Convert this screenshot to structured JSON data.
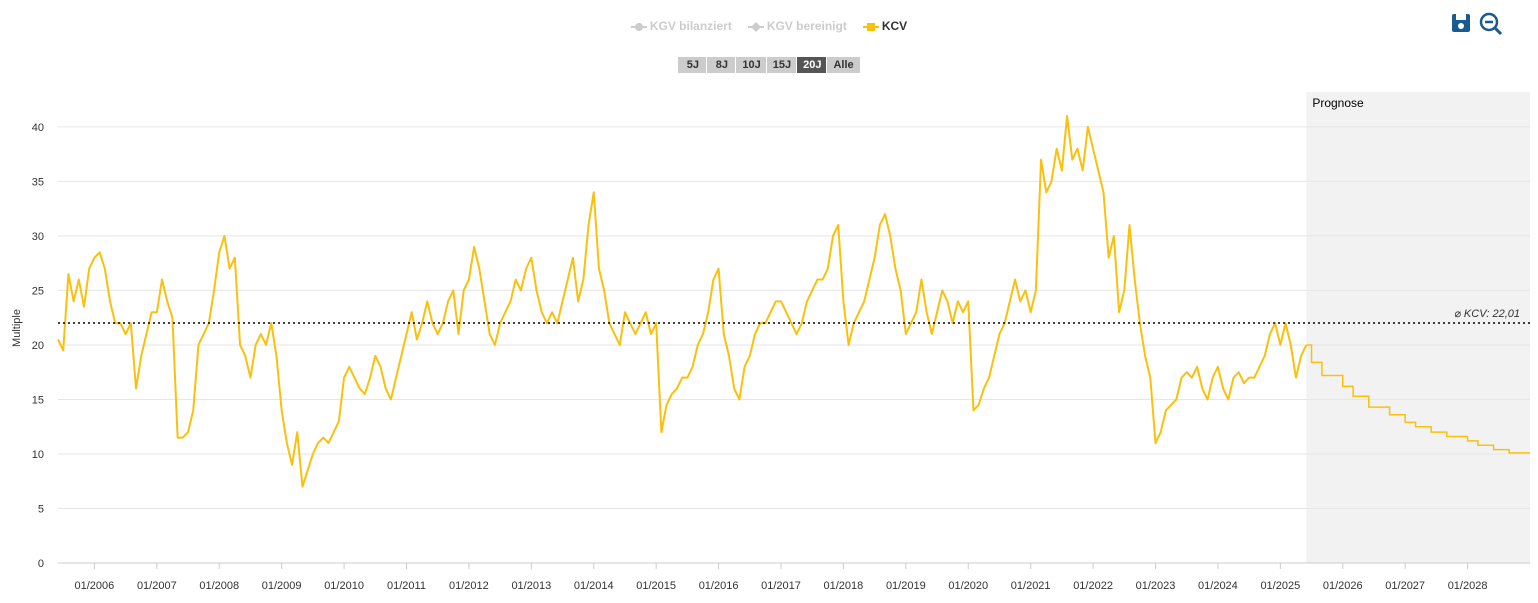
{
  "chart_data": {
    "type": "line",
    "y_label": "Multiple",
    "series": [
      {
        "name": "KGV bilanziert",
        "color": "#cccccc",
        "marker": "circle",
        "visible": false
      },
      {
        "name": "KGV bereinigt",
        "color": "#cccccc",
        "marker": "diamond",
        "visible": false
      },
      {
        "name": "KCV",
        "color": "#f9c10e",
        "marker": "square",
        "visible": true,
        "x": [
          "06/2005",
          "07/2005",
          "08/2005",
          "09/2005",
          "10/2005",
          "11/2005",
          "12/2005",
          "01/2006",
          "02/2006",
          "03/2006",
          "04/2006",
          "05/2006",
          "06/2006",
          "07/2006",
          "08/2006",
          "09/2006",
          "10/2006",
          "11/2006",
          "12/2006",
          "01/2007",
          "02/2007",
          "03/2007",
          "04/2007",
          "05/2007",
          "06/2007",
          "07/2007",
          "08/2007",
          "09/2007",
          "10/2007",
          "11/2007",
          "12/2007",
          "01/2008",
          "02/2008",
          "03/2008",
          "04/2008",
          "05/2008",
          "06/2008",
          "07/2008",
          "08/2008",
          "09/2008",
          "10/2008",
          "11/2008",
          "12/2008",
          "01/2009",
          "02/2009",
          "03/2009",
          "04/2009",
          "05/2009",
          "06/2009",
          "07/2009",
          "08/2009",
          "09/2009",
          "10/2009",
          "11/2009",
          "12/2009",
          "01/2010",
          "02/2010",
          "03/2010",
          "04/2010",
          "05/2010",
          "06/2010",
          "07/2010",
          "08/2010",
          "09/2010",
          "10/2010",
          "11/2010",
          "12/2010",
          "01/2011",
          "02/2011",
          "03/2011",
          "04/2011",
          "05/2011",
          "06/2011",
          "07/2011",
          "08/2011",
          "09/2011",
          "10/2011",
          "11/2011",
          "12/2011",
          "01/2012",
          "02/2012",
          "03/2012",
          "04/2012",
          "05/2012",
          "06/2012",
          "07/2012",
          "08/2012",
          "09/2012",
          "10/2012",
          "11/2012",
          "12/2012",
          "01/2013",
          "02/2013",
          "03/2013",
          "04/2013",
          "05/2013",
          "06/2013",
          "07/2013",
          "08/2013",
          "09/2013",
          "10/2013",
          "11/2013",
          "12/2013",
          "01/2014",
          "02/2014",
          "03/2014",
          "04/2014",
          "05/2014",
          "06/2014",
          "07/2014",
          "08/2014",
          "09/2014",
          "10/2014",
          "11/2014",
          "12/2014",
          "01/2015",
          "02/2015",
          "03/2015",
          "04/2015",
          "05/2015",
          "06/2015",
          "07/2015",
          "08/2015",
          "09/2015",
          "10/2015",
          "11/2015",
          "12/2015",
          "01/2016",
          "02/2016",
          "03/2016",
          "04/2016",
          "05/2016",
          "06/2016",
          "07/2016",
          "08/2016",
          "09/2016",
          "10/2016",
          "11/2016",
          "12/2016",
          "01/2017",
          "02/2017",
          "03/2017",
          "04/2017",
          "05/2017",
          "06/2017",
          "07/2017",
          "08/2017",
          "09/2017",
          "10/2017",
          "11/2017",
          "12/2017",
          "01/2018",
          "02/2018",
          "03/2018",
          "04/2018",
          "05/2018",
          "06/2018",
          "07/2018",
          "08/2018",
          "09/2018",
          "10/2018",
          "11/2018",
          "12/2018",
          "01/2019",
          "02/2019",
          "03/2019",
          "04/2019",
          "05/2019",
          "06/2019",
          "07/2019",
          "08/2019",
          "09/2019",
          "10/2019",
          "11/2019",
          "12/2019",
          "01/2020",
          "02/2020",
          "03/2020",
          "04/2020",
          "05/2020",
          "06/2020",
          "07/2020",
          "08/2020",
          "09/2020",
          "10/2020",
          "11/2020",
          "12/2020",
          "01/2021",
          "02/2021",
          "03/2021",
          "04/2021",
          "05/2021",
          "06/2021",
          "07/2021",
          "08/2021",
          "09/2021",
          "10/2021",
          "11/2021",
          "12/2021",
          "01/2022",
          "02/2022",
          "03/2022",
          "04/2022",
          "05/2022",
          "06/2022",
          "07/2022",
          "08/2022",
          "09/2022",
          "10/2022",
          "11/2022",
          "12/2022",
          "01/2023",
          "02/2023",
          "03/2023",
          "04/2023",
          "05/2023",
          "06/2023",
          "07/2023",
          "08/2023",
          "09/2023",
          "10/2023",
          "11/2023",
          "12/2023",
          "01/2024",
          "02/2024",
          "03/2024",
          "04/2024",
          "05/2024",
          "06/2024",
          "07/2024",
          "08/2024",
          "09/2024",
          "10/2024",
          "11/2024",
          "12/2024",
          "01/2025",
          "02/2025",
          "03/2025",
          "04/2025",
          "05/2025",
          "06/2025"
        ],
        "values": [
          20.5,
          19.5,
          26.5,
          24,
          26,
          23.5,
          27,
          28,
          28.5,
          27,
          24,
          22,
          22,
          21,
          22,
          16,
          19,
          21,
          23,
          23,
          26,
          24,
          22.5,
          11.5,
          11.5,
          12,
          14,
          20,
          21,
          22,
          25,
          28.5,
          30,
          27,
          28,
          20,
          19,
          17,
          20,
          21,
          20,
          22,
          19,
          14,
          11,
          9,
          12,
          7,
          8.5,
          10,
          11,
          11.5,
          11,
          12,
          13,
          17,
          18,
          17,
          16,
          15.5,
          17,
          19,
          18,
          16,
          15,
          17,
          19,
          21,
          23,
          20.5,
          22,
          24,
          22,
          21,
          22,
          24,
          25,
          21,
          25,
          26,
          29,
          27,
          24,
          21,
          20,
          22,
          23,
          24,
          26,
          25,
          27,
          28,
          25,
          23,
          22,
          23,
          22,
          24,
          26,
          28,
          24,
          26,
          31,
          34,
          27,
          25,
          22,
          21,
          20,
          23,
          22,
          21,
          22,
          23,
          21,
          22,
          12,
          14.5,
          15.5,
          16,
          17,
          17,
          18,
          20,
          21,
          23,
          26,
          27,
          21,
          19,
          16,
          15,
          18,
          19,
          21,
          22,
          22,
          23,
          24,
          24,
          23,
          22,
          21,
          22,
          24,
          25,
          26,
          26,
          27,
          30,
          31,
          24,
          20,
          22,
          23,
          24,
          26,
          28,
          31,
          32,
          30,
          27,
          25,
          21,
          22,
          23,
          26,
          23,
          21,
          23,
          25,
          24,
          22,
          24,
          23,
          24,
          14,
          14.5,
          16,
          17,
          19,
          21,
          22,
          24,
          26,
          24,
          25,
          23,
          25,
          37,
          34,
          35,
          38,
          36,
          41,
          37,
          38,
          36,
          40,
          38,
          36,
          34,
          28,
          30,
          23,
          25,
          31,
          26,
          22,
          19,
          17,
          11,
          12,
          14,
          14.5,
          15,
          17,
          17.5,
          17,
          18,
          16,
          15,
          17,
          18,
          16,
          15,
          17,
          17.5,
          16.5,
          17,
          17,
          18,
          19,
          21,
          22,
          20,
          22,
          20,
          17,
          19,
          20
        ]
      }
    ],
    "forecast": {
      "label": "Prognose",
      "x": [
        "06/2025",
        "07/2025",
        "09/2025",
        "01/2026",
        "03/2026",
        "06/2026",
        "10/2026",
        "01/2027",
        "03/2027",
        "06/2027",
        "09/2027",
        "01/2028",
        "03/2028",
        "06/2028",
        "09/2028"
      ],
      "values": [
        20,
        18.4,
        17.2,
        16.2,
        15.3,
        14.3,
        13.6,
        12.9,
        12.5,
        12,
        11.6,
        11.2,
        10.8,
        10.4,
        10.1
      ],
      "step": true
    },
    "average": {
      "value": 22.01,
      "label": "⌀ KCV: 22,01"
    },
    "range_buttons": [
      "5J",
      "8J",
      "10J",
      "15J",
      "20J",
      "Alle"
    ],
    "active_range": 4,
    "xlim": [
      "06/2005",
      "01/2029"
    ],
    "xticks": [
      "01/2006",
      "01/2007",
      "01/2008",
      "01/2009",
      "01/2010",
      "01/2011",
      "01/2012",
      "01/2013",
      "01/2014",
      "01/2015",
      "01/2016",
      "01/2017",
      "01/2018",
      "01/2019",
      "01/2020",
      "01/2021",
      "01/2022",
      "01/2023",
      "01/2024",
      "01/2025",
      "01/2026",
      "01/2027",
      "01/2028"
    ],
    "ylim": [
      0,
      43.2
    ],
    "yticks": [
      0,
      5,
      10,
      15,
      20,
      25,
      30,
      35,
      40
    ],
    "grid": true
  }
}
